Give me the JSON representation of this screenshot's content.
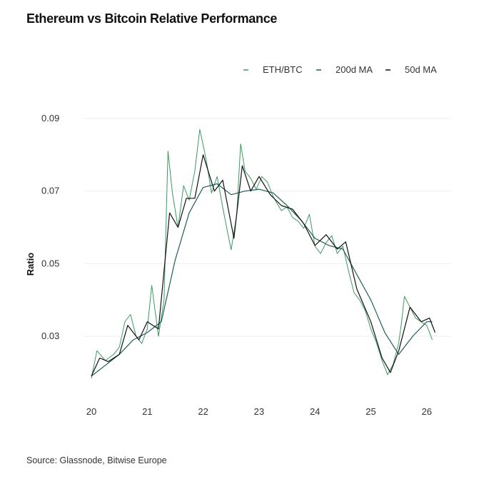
{
  "title": "Ethereum vs Bitcoin Relative Performance",
  "source": "Source: Glassnode, Bitwise Europe",
  "chart_data": {
    "type": "line",
    "title": "Ethereum vs Bitcoin Relative Performance",
    "xlabel": "",
    "ylabel": "Ratio",
    "xlim": [
      2019.9,
      2026.25
    ],
    "ylim": [
      0.015,
      0.09
    ],
    "xticks": [
      {
        "v": 2020,
        "label": "20"
      },
      {
        "v": 2021,
        "label": "21"
      },
      {
        "v": 2022,
        "label": "22"
      },
      {
        "v": 2023,
        "label": "23"
      },
      {
        "v": 2024,
        "label": "24"
      },
      {
        "v": 2025,
        "label": "25"
      },
      {
        "v": 2026,
        "label": "26"
      }
    ],
    "yticks": [
      {
        "v": 0.03,
        "label": "0.03"
      },
      {
        "v": 0.05,
        "label": "0.05"
      },
      {
        "v": 0.07,
        "label": "0.07"
      },
      {
        "v": 0.09,
        "label": "0.09"
      }
    ],
    "grid": "horizontal",
    "legend_placement": "top-right",
    "series": [
      {
        "name": "ETH/BTC",
        "color": "#3a9a62",
        "width": 1,
        "x": [
          2020.0,
          2020.1,
          2020.25,
          2020.4,
          2020.5,
          2020.6,
          2020.7,
          2020.8,
          2020.9,
          2021.0,
          2021.08,
          2021.2,
          2021.3,
          2021.37,
          2021.45,
          2021.55,
          2021.65,
          2021.75,
          2021.85,
          2021.94,
          2022.05,
          2022.15,
          2022.25,
          2022.35,
          2022.45,
          2022.5,
          2022.6,
          2022.67,
          2022.75,
          2022.85,
          2022.95,
          2023.05,
          2023.15,
          2023.25,
          2023.4,
          2023.5,
          2023.6,
          2023.7,
          2023.8,
          2023.9,
          2024.0,
          2024.1,
          2024.2,
          2024.3,
          2024.4,
          2024.5,
          2024.6,
          2024.7,
          2024.8,
          2024.9,
          2025.0,
          2025.1,
          2025.2,
          2025.3,
          2025.4,
          2025.5,
          2025.55,
          2025.6,
          2025.7,
          2025.8,
          2025.9,
          2026.0,
          2026.1
        ],
        "y": [
          0.0184,
          0.026,
          0.0233,
          0.025,
          0.027,
          0.034,
          0.036,
          0.03,
          0.028,
          0.032,
          0.044,
          0.03,
          0.04,
          0.081,
          0.0695,
          0.06,
          0.0715,
          0.0675,
          0.0755,
          0.087,
          0.079,
          0.0695,
          0.074,
          0.0655,
          0.0577,
          0.0538,
          0.0636,
          0.083,
          0.0755,
          0.0735,
          0.0705,
          0.074,
          0.0725,
          0.0685,
          0.0646,
          0.0656,
          0.0627,
          0.0617,
          0.0597,
          0.0636,
          0.0548,
          0.0528,
          0.0558,
          0.0577,
          0.0528,
          0.0548,
          0.048,
          0.042,
          0.04,
          0.037,
          0.032,
          0.0282,
          0.0233,
          0.0194,
          0.0223,
          0.0282,
          0.034,
          0.041,
          0.038,
          0.035,
          0.034,
          0.033,
          0.029
        ]
      },
      {
        "name": "200d MA",
        "color": "#1f5e5a",
        "width": 1.2,
        "x": [
          2020.0,
          2020.25,
          2020.5,
          2020.75,
          2021.0,
          2021.25,
          2021.5,
          2021.75,
          2022.0,
          2022.25,
          2022.5,
          2022.75,
          2023.0,
          2023.25,
          2023.5,
          2023.75,
          2024.0,
          2024.25,
          2024.5,
          2024.75,
          2025.0,
          2025.25,
          2025.5,
          2025.75,
          2026.0,
          2026.1
        ],
        "y": [
          0.019,
          0.022,
          0.025,
          0.029,
          0.031,
          0.034,
          0.051,
          0.064,
          0.071,
          0.072,
          0.069,
          0.07,
          0.0705,
          0.0695,
          0.066,
          0.062,
          0.057,
          0.055,
          0.054,
          0.047,
          0.04,
          0.031,
          0.025,
          0.03,
          0.034,
          0.034
        ]
      },
      {
        "name": "50d MA",
        "color": "#111111",
        "width": 1.2,
        "x": [
          2020.0,
          2020.15,
          2020.3,
          2020.5,
          2020.65,
          2020.85,
          2021.0,
          2021.2,
          2021.4,
          2021.55,
          2021.7,
          2021.85,
          2022.0,
          2022.2,
          2022.35,
          2022.55,
          2022.7,
          2022.85,
          2023.0,
          2023.2,
          2023.4,
          2023.6,
          2023.8,
          2024.0,
          2024.2,
          2024.4,
          2024.55,
          2024.75,
          2025.0,
          2025.2,
          2025.35,
          2025.5,
          2025.7,
          2025.9,
          2026.05,
          2026.15
        ],
        "y": [
          0.019,
          0.024,
          0.023,
          0.025,
          0.033,
          0.029,
          0.034,
          0.032,
          0.064,
          0.06,
          0.068,
          0.068,
          0.08,
          0.07,
          0.073,
          0.057,
          0.077,
          0.07,
          0.074,
          0.069,
          0.066,
          0.065,
          0.061,
          0.055,
          0.058,
          0.054,
          0.056,
          0.043,
          0.034,
          0.024,
          0.02,
          0.026,
          0.038,
          0.034,
          0.035,
          0.031
        ]
      }
    ]
  }
}
